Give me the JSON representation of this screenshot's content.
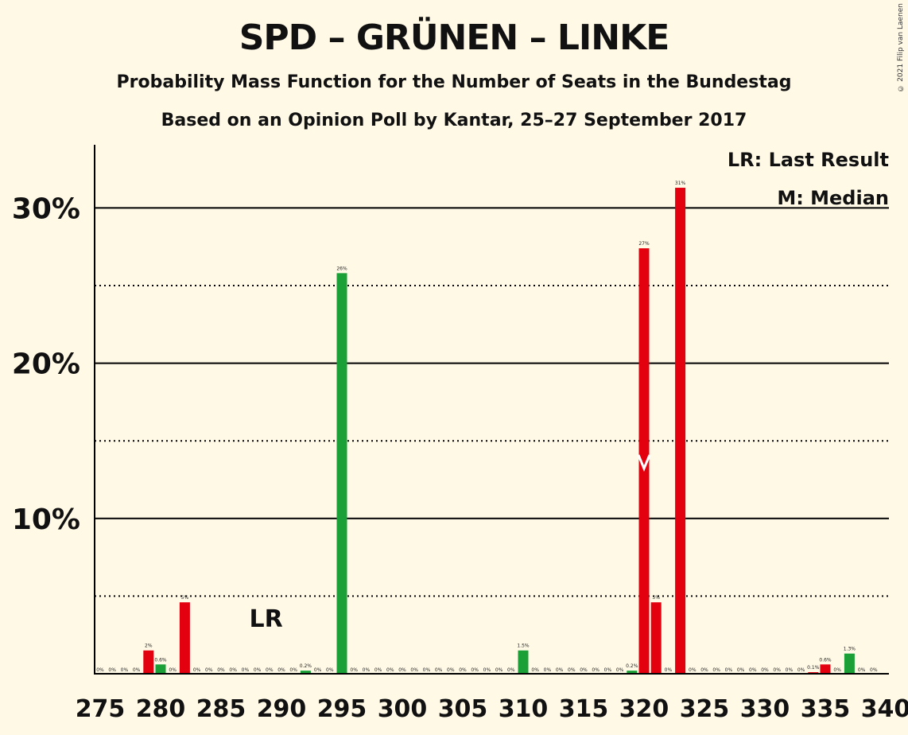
{
  "title": "SPD – GRÜNEN – LINKE",
  "subtitle": "Probability Mass Function for the Number of Seats in the Bundestag",
  "subtitle2": "Based on an Opinion Poll by Kantar, 25–27 September 2017",
  "copyright": "© 2021 Filip van Laenen",
  "legend": {
    "last_result": "LR: Last Result",
    "median": "M: Median"
  },
  "colors": {
    "background": "#FFF9E6",
    "red": "#E3000F",
    "green": "#1AA037",
    "axis": "#000000"
  },
  "chart_data": {
    "type": "bar",
    "xlim": [
      275,
      340
    ],
    "ylim": [
      0,
      34
    ],
    "yticks": [
      10,
      20,
      30
    ],
    "ytick_labels": [
      "10%",
      "20%",
      "30%"
    ],
    "dotted_gridlines": [
      5,
      15,
      25
    ],
    "xtick_labels": [
      "275",
      "280",
      "285",
      "290",
      "295",
      "300",
      "305",
      "310",
      "315",
      "320",
      "325",
      "330",
      "335",
      "340"
    ],
    "last_result_seat": 288,
    "last_result_label": "LR",
    "median_seat": 320,
    "median_marker": "M",
    "bars": [
      {
        "x": 275,
        "value": 0,
        "label": "0%"
      },
      {
        "x": 276,
        "value": 0,
        "label": "0%"
      },
      {
        "x": 277,
        "value": 0,
        "label": "0%"
      },
      {
        "x": 278,
        "value": 0,
        "label": "0%"
      },
      {
        "x": 279,
        "value": 1.5,
        "label": "2%",
        "color": "red"
      },
      {
        "x": 280,
        "value": 0.6,
        "label": "0.6%",
        "color": "green"
      },
      {
        "x": 281,
        "value": 0,
        "label": "0%"
      },
      {
        "x": 282,
        "value": 4.6,
        "label": "5%",
        "color": "red"
      },
      {
        "x": 283,
        "value": 0,
        "label": "0%"
      },
      {
        "x": 284,
        "value": 0,
        "label": "0%"
      },
      {
        "x": 285,
        "value": 0,
        "label": "0%"
      },
      {
        "x": 286,
        "value": 0,
        "label": "0%"
      },
      {
        "x": 287,
        "value": 0,
        "label": "0%"
      },
      {
        "x": 288,
        "value": 0,
        "label": "0%"
      },
      {
        "x": 289,
        "value": 0,
        "label": "0%"
      },
      {
        "x": 290,
        "value": 0,
        "label": "0%"
      },
      {
        "x": 291,
        "value": 0,
        "label": "0%"
      },
      {
        "x": 292,
        "value": 0.2,
        "label": "0.2%",
        "color": "green"
      },
      {
        "x": 293,
        "value": 0,
        "label": "0%"
      },
      {
        "x": 294,
        "value": 0,
        "label": "0%"
      },
      {
        "x": 295,
        "value": 25.8,
        "label": "26%",
        "color": "green"
      },
      {
        "x": 296,
        "value": 0,
        "label": "0%"
      },
      {
        "x": 297,
        "value": 0,
        "label": "0%"
      },
      {
        "x": 298,
        "value": 0,
        "label": "0%"
      },
      {
        "x": 299,
        "value": 0,
        "label": "0%"
      },
      {
        "x": 300,
        "value": 0,
        "label": "0%"
      },
      {
        "x": 301,
        "value": 0,
        "label": "0%"
      },
      {
        "x": 302,
        "value": 0,
        "label": "0%"
      },
      {
        "x": 303,
        "value": 0,
        "label": "0%"
      },
      {
        "x": 304,
        "value": 0,
        "label": "0%"
      },
      {
        "x": 305,
        "value": 0,
        "label": "0%"
      },
      {
        "x": 306,
        "value": 0,
        "label": "0%"
      },
      {
        "x": 307,
        "value": 0,
        "label": "0%"
      },
      {
        "x": 308,
        "value": 0,
        "label": "0%"
      },
      {
        "x": 309,
        "value": 0,
        "label": "0%"
      },
      {
        "x": 310,
        "value": 1.5,
        "label": "1.5%",
        "color": "green"
      },
      {
        "x": 311,
        "value": 0,
        "label": "0%"
      },
      {
        "x": 312,
        "value": 0,
        "label": "0%"
      },
      {
        "x": 313,
        "value": 0,
        "label": "0%"
      },
      {
        "x": 314,
        "value": 0,
        "label": "0%"
      },
      {
        "x": 315,
        "value": 0,
        "label": "0%"
      },
      {
        "x": 316,
        "value": 0,
        "label": "0%"
      },
      {
        "x": 317,
        "value": 0,
        "label": "0%"
      },
      {
        "x": 318,
        "value": 0,
        "label": "0%"
      },
      {
        "x": 319,
        "value": 0.2,
        "label": "0.2%",
        "color": "green"
      },
      {
        "x": 320,
        "value": 27.4,
        "label": "27%",
        "color": "red"
      },
      {
        "x": 321,
        "value": 4.6,
        "label": "5%",
        "color": "red"
      },
      {
        "x": 322,
        "value": 0,
        "label": "0%"
      },
      {
        "x": 323,
        "value": 31.3,
        "label": "31%",
        "color": "red"
      },
      {
        "x": 324,
        "value": 0,
        "label": "0%"
      },
      {
        "x": 325,
        "value": 0,
        "label": "0%"
      },
      {
        "x": 326,
        "value": 0,
        "label": "0%"
      },
      {
        "x": 327,
        "value": 0,
        "label": "0%"
      },
      {
        "x": 328,
        "value": 0,
        "label": "0%"
      },
      {
        "x": 329,
        "value": 0,
        "label": "0%"
      },
      {
        "x": 330,
        "value": 0,
        "label": "0%"
      },
      {
        "x": 331,
        "value": 0,
        "label": "0%"
      },
      {
        "x": 332,
        "value": 0,
        "label": "0%"
      },
      {
        "x": 333,
        "value": 0,
        "label": "0%"
      },
      {
        "x": 334,
        "value": 0.1,
        "label": "0.1%",
        "color": "red"
      },
      {
        "x": 335,
        "value": 0.6,
        "label": "0.6%",
        "color": "red"
      },
      {
        "x": 336,
        "value": 0,
        "label": "0%"
      },
      {
        "x": 337,
        "value": 1.3,
        "label": "1.3%",
        "color": "green"
      },
      {
        "x": 338,
        "value": 0,
        "label": "0%"
      },
      {
        "x": 339,
        "value": 0,
        "label": "0%"
      }
    ]
  }
}
